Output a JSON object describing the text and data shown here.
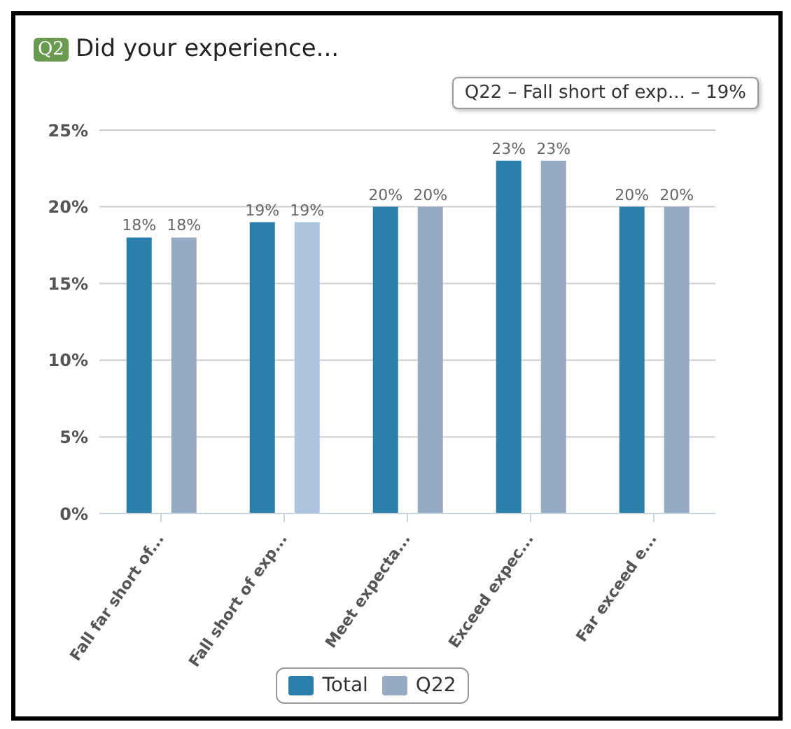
{
  "chart_data": {
    "type": "bar",
    "title": "Did your experience...",
    "categories": [
      "Fall far short of...",
      "Fall short of exp...",
      "Meet expecta...",
      "Exceed expec...",
      "Far exceed e..."
    ],
    "series": [
      {
        "name": "Total",
        "color": "#2a7fab",
        "values": [
          18,
          19,
          20,
          23,
          20
        ],
        "value_labels": [
          "18%",
          "19%",
          "20%",
          "23%",
          "20%"
        ]
      },
      {
        "name": "Q22",
        "color": "#97aac4",
        "colors": [
          "#97aac4",
          "#adc3de",
          "#97aac4",
          "#97aac4",
          "#97aac4"
        ],
        "values": [
          18,
          19,
          20,
          23,
          20
        ],
        "value_labels": [
          "18%",
          "19%",
          "20%",
          "23%",
          "20%"
        ]
      }
    ],
    "ylim": [
      0,
      25
    ],
    "yticks": [
      {
        "value": 0,
        "label": "0%"
      },
      {
        "value": 5,
        "label": "5%"
      },
      {
        "value": 10,
        "label": "10%"
      },
      {
        "value": 15,
        "label": "15%"
      },
      {
        "value": 20,
        "label": "20%"
      },
      {
        "value": 25,
        "label": "25%"
      }
    ],
    "grid": "y",
    "legend": "bottom",
    "annotations": [
      "Q2",
      "Q22 – Fall short of exp... – 19%"
    ]
  }
}
